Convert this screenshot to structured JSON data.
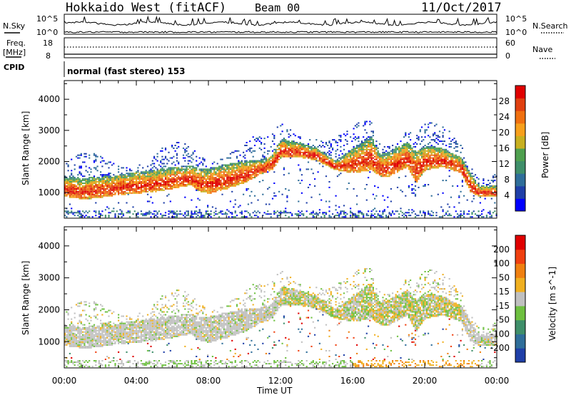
{
  "header": {
    "station": "Hokkaido West (fitACF)",
    "beam": "Beam 00",
    "date": "11/Oct/2017"
  },
  "noise_panel": {
    "left_label": "N.Sky",
    "right_label": "N.Search",
    "left_ticks": [
      "10^5",
      "10^0"
    ],
    "right_ticks": [
      "10^5",
      "10^0"
    ]
  },
  "freq_panel": {
    "left_label_top": "Freq.",
    "left_label_unit": "[MHz]",
    "right_label": "Nave",
    "left_ticks": [
      "18",
      "8"
    ],
    "right_ticks": [
      "60",
      "0"
    ]
  },
  "cpid_panel": {
    "label": "CPID",
    "text": "normal (fast stereo) 153"
  },
  "chart_data": [
    {
      "type": "heatmap",
      "name": "power",
      "ylabel": "Slant Range [km]",
      "xlabel": "",
      "ylim": [
        180,
        4600
      ],
      "yticks": [
        "4000",
        "3000",
        "2000",
        "1000"
      ],
      "colorbar_label": "Power [dB]",
      "colorbar_ticks": [
        "28",
        "24",
        "20",
        "16",
        "12",
        "8",
        "4"
      ],
      "colors": [
        "#0000ff",
        "#1f3fa8",
        "#2f6e9a",
        "#3f8f6a",
        "#4fa04f",
        "#c8b020",
        "#f7a01c",
        "#f07010",
        "#e04010",
        "#e00000"
      ]
    },
    {
      "type": "heatmap",
      "name": "velocity",
      "ylabel": "Slant Range [km]",
      "xlabel": "Time UT",
      "xticks": [
        "00:00",
        "04:00",
        "08:00",
        "12:00",
        "16:00",
        "20:00",
        "00:00"
      ],
      "ylim": [
        180,
        4600
      ],
      "yticks": [
        "4000",
        "3000",
        "2000",
        "1000"
      ],
      "colorbar_label": "Velocity [m s^-1]",
      "colorbar_ticks": [
        "200",
        "100",
        "50",
        "15",
        "-15",
        "-50",
        "-100",
        "-200"
      ],
      "colors": [
        "#1f3fa8",
        "#2f6e9a",
        "#3f8f6a",
        "#6ec040",
        "#c0c0c0",
        "#f0b020",
        "#f08010",
        "#f04010",
        "#e00000"
      ]
    }
  ]
}
